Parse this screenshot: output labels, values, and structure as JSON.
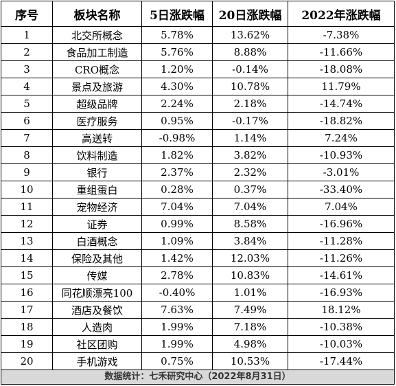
{
  "headers": [
    "序号",
    "板块名称",
    "5日涨跌幅",
    "20日涨跌幅",
    "2022年涨跌幅"
  ],
  "rows": [
    [
      "1",
      "北交所概念",
      "5.78%",
      "13.62%",
      "-7.38%"
    ],
    [
      "2",
      "食品加工制造",
      "5.76%",
      "8.88%",
      "-11.66%"
    ],
    [
      "3",
      "CRO概念",
      "1.20%",
      "-0.14%",
      "-18.08%"
    ],
    [
      "4",
      "景点及旅游",
      "4.30%",
      "10.78%",
      "11.79%"
    ],
    [
      "5",
      "超级品牌",
      "2.24%",
      "2.18%",
      "-14.74%"
    ],
    [
      "6",
      "医疗服务",
      "0.95%",
      "-0.17%",
      "-18.82%"
    ],
    [
      "7",
      "高送转",
      "-0.98%",
      "1.14%",
      "7.24%"
    ],
    [
      "8",
      "饮料制造",
      "1.82%",
      "3.82%",
      "-10.93%"
    ],
    [
      "9",
      "银行",
      "2.37%",
      "2.32%",
      "-3.01%"
    ],
    [
      "10",
      "重组蛋白",
      "0.28%",
      "0.37%",
      "-33.40%"
    ],
    [
      "11",
      "宠物经济",
      "7.04%",
      "7.04%",
      "7.04%"
    ],
    [
      "12",
      "证券",
      "0.99%",
      "8.58%",
      "-16.96%"
    ],
    [
      "13",
      "白酒概念",
      "1.09%",
      "3.84%",
      "-11.28%"
    ],
    [
      "14",
      "保险及其他",
      "1.42%",
      "12.03%",
      "-11.26%"
    ],
    [
      "15",
      "传媒",
      "2.78%",
      "10.83%",
      "-14.61%"
    ],
    [
      "16",
      "同花顺漂亮100",
      "-0.40%",
      "1.01%",
      "-16.93%"
    ],
    [
      "17",
      "酒店及餐饮",
      "7.63%",
      "7.49%",
      "18.12%"
    ],
    [
      "18",
      "人造肉",
      "1.99%",
      "7.18%",
      "-10.38%"
    ],
    [
      "19",
      "社区团购",
      "1.99%",
      "4.98%",
      "-10.03%"
    ],
    [
      "20",
      "手机游戏",
      "0.75%",
      "10.53%",
      "-17.44%"
    ]
  ],
  "footer": "数据统计：七禾研究中心（2022年8月31日）"
}
